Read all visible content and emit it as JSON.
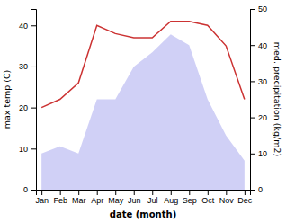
{
  "chart_data": {
    "type": "line",
    "categories": [
      "Jan",
      "Feb",
      "Mar",
      "Apr",
      "May",
      "Jun",
      "Jul",
      "Aug",
      "Sep",
      "Oct",
      "Nov",
      "Dec"
    ],
    "xlabel": "date (month)",
    "ylabel": "max temp (C)",
    "y2label": "med. precipitation (kg/m2)",
    "series": [
      {
        "type": "line",
        "color": "#cc3333",
        "values": [
          20,
          22,
          26,
          40,
          38,
          37,
          37,
          41,
          41,
          40,
          35,
          22
        ]
      },
      {
        "type": "area",
        "color": "#aaaaee",
        "axis": "y2",
        "values": [
          10,
          12,
          10,
          25,
          25,
          34,
          38,
          43,
          40,
          25,
          15,
          8
        ]
      }
    ],
    "ylim": [
      0,
      44
    ],
    "yticks": [
      0,
      10,
      20,
      30,
      40
    ],
    "y2lim": [
      0,
      50
    ],
    "y2ticks": [
      0,
      10,
      20,
      30,
      40,
      50
    ]
  }
}
